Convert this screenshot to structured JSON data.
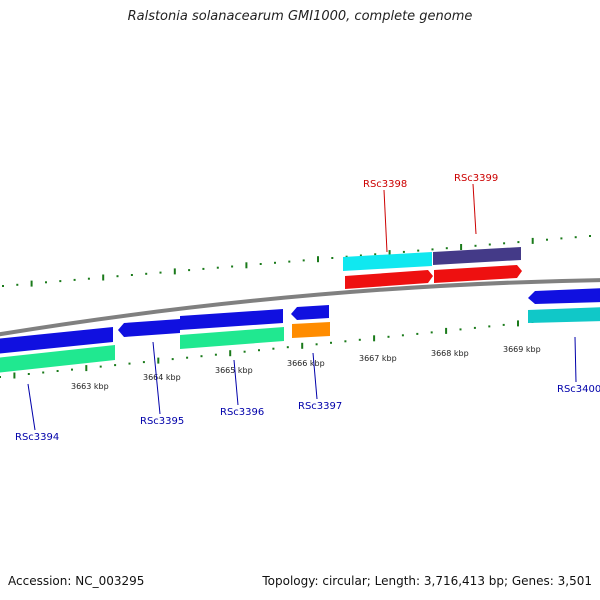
{
  "title": "Ralstonia solanacearum GMI1000, complete genome",
  "footer": {
    "accession": "Accession: NC_003295",
    "summary": "Topology: circular; Length: 3,716,413 bp; Genes: 3,501"
  },
  "kbp_labels": [
    "3663 kbp",
    "3664 kbp",
    "3665 kbp",
    "3666 kbp",
    "3667 kbp",
    "3668 kbp",
    "3669 kbp"
  ],
  "gene_labels": {
    "rsc3394": "RSc3394",
    "rsc3395": "RSc3395",
    "rsc3396": "RSc3396",
    "rsc3397": "RSc3397",
    "rsc3398": "RSc3398",
    "rsc3399": "RSc3399",
    "rsc3400": "RSc3400"
  },
  "colors": {
    "forward_label": "#cc0000",
    "reverse_label": "#0000aa",
    "blue_gene": "#1010e0",
    "green_gene": "#20e890",
    "red_gene": "#ee1010",
    "cyan_gene": "#10e8f0",
    "teal_gene": "#10c8c8",
    "purple_gene": "#443a88",
    "orange_gene": "#ff8c00",
    "tick": "#1a7a1a",
    "backbone": "#808080"
  }
}
